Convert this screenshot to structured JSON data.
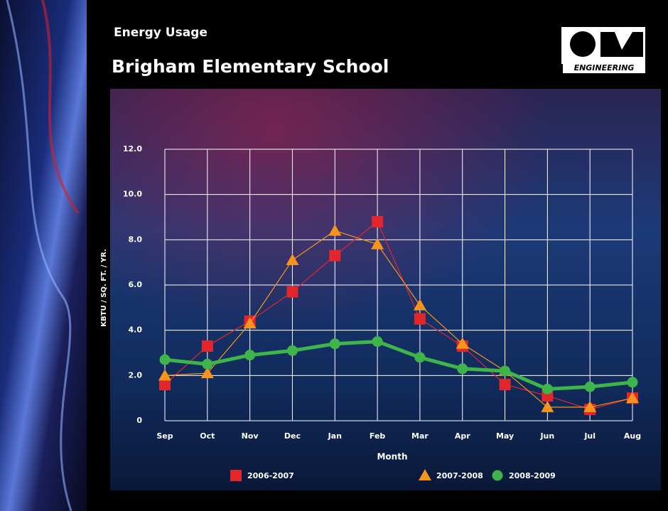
{
  "logo_text": "ENGINEERING",
  "chart_data": {
    "type": "line",
    "title": "Energy Usage",
    "subtitle": "Brigham Elementary School",
    "y_label": "KBTU / SQ. FT. / YR.",
    "x_label": "Month",
    "categories": [
      "Sep",
      "Oct",
      "Nov",
      "Dec",
      "Jan",
      "Feb",
      "Mar",
      "Apr",
      "May",
      "Jun",
      "Jul",
      "Aug"
    ],
    "ylim": [
      0,
      12
    ],
    "yticks": [
      0,
      {
        "value": 2,
        "label": "2.0"
      },
      {
        "value": 4,
        "label": "4.0"
      },
      {
        "value": 6,
        "label": "6.0"
      },
      {
        "value": 8,
        "label": "8.0"
      },
      {
        "value": 10,
        "label": "10.0"
      },
      {
        "value": 12,
        "label": "12.0"
      }
    ],
    "grid": true,
    "series": [
      {
        "name": "2006-2007",
        "color": "#e3262b",
        "marker": "square",
        "width": 1.2,
        "values": [
          1.6,
          3.3,
          4.4,
          5.7,
          7.3,
          8.8,
          4.5,
          3.3,
          1.6,
          1.1,
          0.5,
          1.0
        ]
      },
      {
        "name": "2007-2008",
        "color": "#f7941d",
        "marker": "triangle",
        "width": 1.2,
        "values": [
          2.0,
          2.1,
          4.3,
          7.1,
          8.4,
          7.8,
          5.1,
          3.4,
          2.2,
          0.6,
          0.6,
          1.0
        ]
      },
      {
        "name": "2008-2009",
        "color": "#3db54a",
        "marker": "circle",
        "width": 5,
        "values": [
          2.7,
          2.5,
          2.9,
          3.1,
          3.4,
          3.5,
          2.8,
          2.3,
          2.2,
          1.4,
          1.5,
          1.7
        ]
      }
    ]
  }
}
